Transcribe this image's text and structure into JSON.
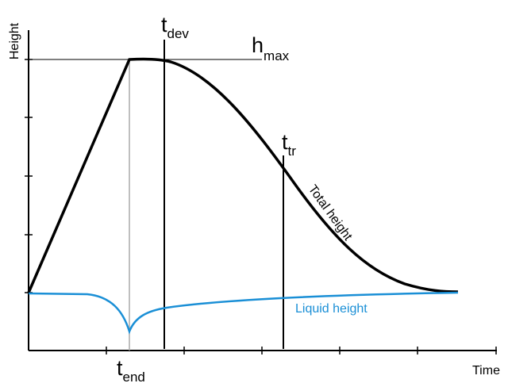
{
  "axes": {
    "y_label": "Height",
    "x_label": "Time"
  },
  "markers": {
    "t_dev": {
      "base": "t",
      "sub": "dev"
    },
    "h_max": {
      "base": "h",
      "sub": "max"
    },
    "t_tr": {
      "base": "t",
      "sub": "tr"
    },
    "t_end": {
      "base": "t",
      "sub": "end"
    }
  },
  "curves": {
    "total": "Total height",
    "liquid": "Liquid height"
  }
}
